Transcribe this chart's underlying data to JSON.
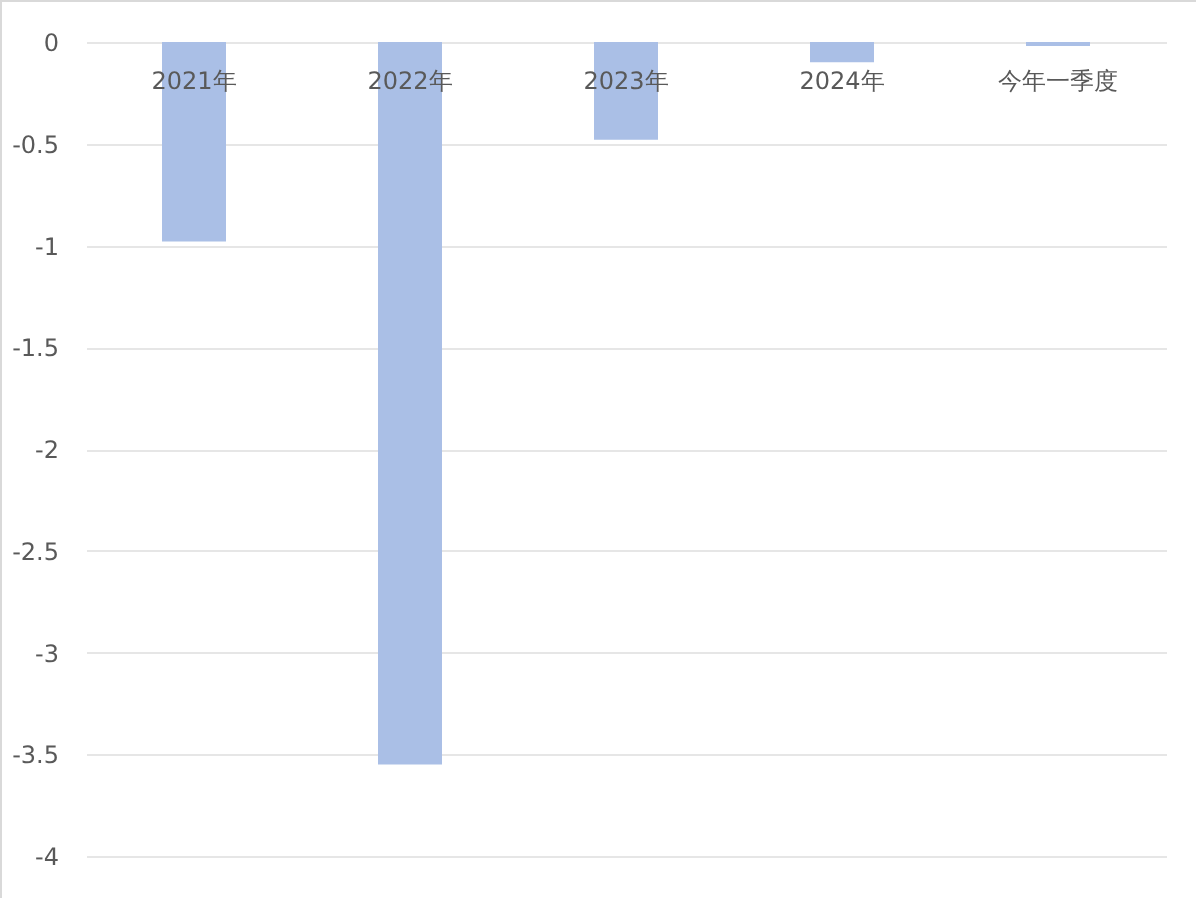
{
  "chart_data": {
    "type": "bar",
    "categories": [
      "2021年",
      "2022年",
      "2023年",
      "2024年",
      "今年一季度"
    ],
    "values": [
      -0.98,
      -3.55,
      -0.48,
      -0.1,
      -0.02
    ],
    "color": "#aabfe6",
    "ylim": [
      -4,
      0
    ],
    "yticks": [
      -4,
      -3.5,
      -3,
      -2.5,
      -2,
      -1.5,
      -1,
      -0.5,
      0
    ],
    "grid": "y"
  }
}
